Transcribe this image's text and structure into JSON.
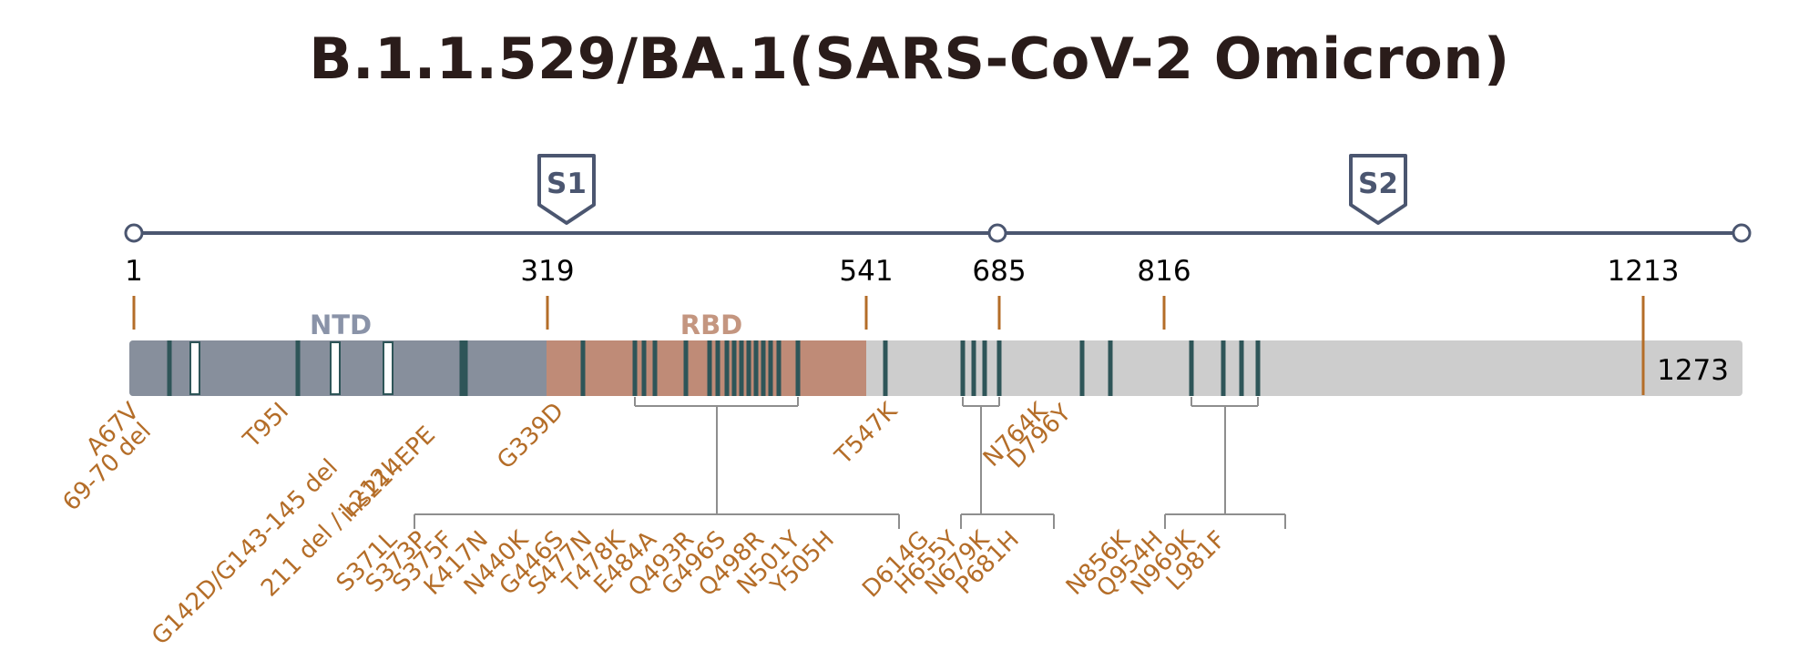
{
  "title": "B.1.1.529/BA.1(SARS-CoV-2 Omicron)",
  "colors": {
    "title": "#2a1c1a",
    "axis": "#4b5670",
    "ntd": "#878f9c",
    "rbd": "#bf8b77",
    "rest": "#cdcdcd",
    "mutation_bar": "#2e5558",
    "label": "#b46d28",
    "bracket": "#8e8e8e",
    "pos_tick": "#b46d28"
  },
  "subunits": [
    {
      "label": "S1"
    },
    {
      "label": "S2"
    }
  ],
  "positions": [
    "1",
    "319",
    "541",
    "685",
    "816",
    "1213"
  ],
  "end_label": "1273",
  "domains": [
    {
      "label": "NTD",
      "color": "#878f9c"
    },
    {
      "label": "RBD",
      "color": "#bf8b77"
    }
  ],
  "mutations": {
    "direct": [
      "A67V",
      "69-70 del",
      "T95I",
      "G142D/G143-145 del",
      "211 del / L212I",
      "ins214EPE",
      "G339D",
      "T547K",
      "N764K",
      "D796Y"
    ],
    "rbd_group": [
      "S371L",
      "S373P",
      "S375F",
      "K417N",
      "N440K",
      "G446S",
      "S477N",
      "T478K",
      "E484A",
      "Q493R",
      "G496S",
      "Q498R",
      "N501Y",
      "Y505H"
    ],
    "furin_group": [
      "D614G",
      "H655Y",
      "N679K",
      "P681H"
    ],
    "s2_group": [
      "N856K",
      "Q954H",
      "N969K",
      "L981F"
    ]
  }
}
